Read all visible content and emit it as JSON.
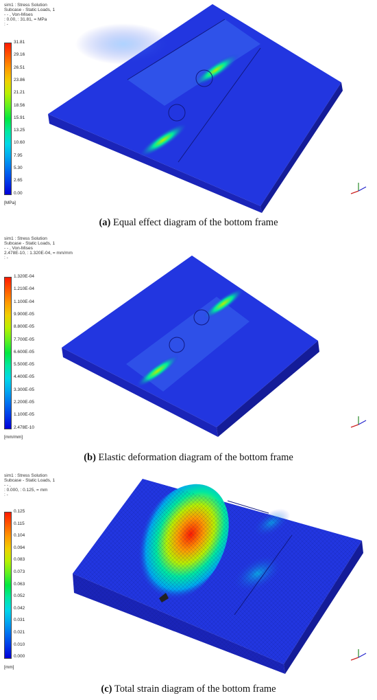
{
  "panels": [
    {
      "header": [
        "sim1 : Stress Solution",
        "Subcase - Static Loads,  1",
        " - - ,  Von-Mises",
        " : 0.00,  : 31.81,  = MPa",
        " : -"
      ],
      "ticks": [
        "31.81",
        "29.16",
        "26.51",
        "23.86",
        "21.21",
        "18.56",
        "15.91",
        "13.25",
        "10.60",
        "7.95",
        "5.30",
        "2.65",
        "0.00"
      ],
      "unit": "[MPa]",
      "caption_letter": "(a)",
      "caption_text": " Equal effect diagram of the bottom frame",
      "field": "stress"
    },
    {
      "header": [
        "sim1 : Stress Solution",
        "Subcase - Static Loads,  1",
        " - - ,  Von-Mises",
        " 2.478E-10,  : 1.320E-04,  = mm/mm",
        " : -"
      ],
      "ticks": [
        "1.320E-04",
        "1.210E-04",
        "1.100E-04",
        "9.900E-05",
        "8.800E-05",
        "7.700E-05",
        "6.600E-05",
        "5.500E-05",
        "4.400E-05",
        "3.300E-05",
        "2.200E-05",
        "1.100E-05",
        "2.478E-10"
      ],
      "unit": "[mm/mm]",
      "caption_letter": "(b)",
      "caption_text": " Elastic deformation diagram of the bottom frame",
      "field": "strain"
    },
    {
      "header": [
        "sim1 : Stress Solution",
        "Subcase - Static Loads,  1",
        " - - ,",
        " : 0.000,  : 0.125,  = mm",
        " : -"
      ],
      "ticks": [
        "0.125",
        "0.115",
        "0.104",
        "0.094",
        "0.083",
        "0.073",
        "0.063",
        "0.052",
        "0.042",
        "0.031",
        "0.021",
        "0.010",
        "0.000"
      ],
      "unit": "[mm]",
      "caption_letter": "(c)",
      "caption_text": " Total strain diagram of the bottom frame",
      "field": "displacement"
    }
  ],
  "colors": {
    "scale": [
      "#ff1a00",
      "#ff5a00",
      "#ff9a00",
      "#f0d000",
      "#b8f000",
      "#60f020",
      "#00e840",
      "#00e8a0",
      "#00d8e8",
      "#00a8f0",
      "#0070f0",
      "#0038e8",
      "#0000d8"
    ],
    "frame_base": "#2236e0",
    "frame_side": "#1a24b8"
  },
  "icons": [
    "axis-triad-icon"
  ]
}
